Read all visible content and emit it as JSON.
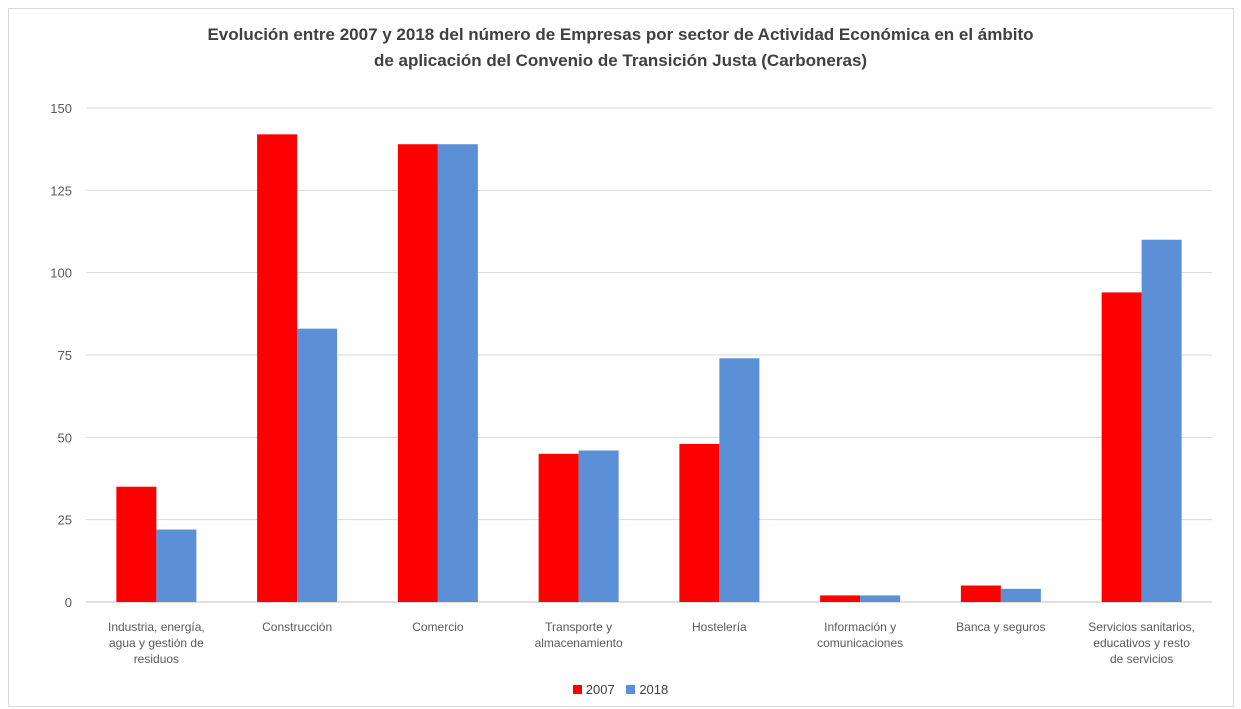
{
  "chart_data": {
    "type": "bar",
    "title_line1": "Evolución entre 2007 y 2018 del número de Empresas por sector de Actividad Económica en el ámbito",
    "title_line2": "de aplicación del Convenio de Transición Justa (Carboneras)",
    "categories": [
      [
        "Industria, energía,",
        "agua y gestión de",
        "residuos"
      ],
      [
        "Construcción"
      ],
      [
        "Comercio"
      ],
      [
        "Transporte y",
        "almacenamiento"
      ],
      [
        "Hostelería"
      ],
      [
        "Información y",
        "comunicaciones"
      ],
      [
        "Banca y seguros"
      ],
      [
        "Servicios sanitarios,",
        "educativos y resto",
        "de servicios"
      ]
    ],
    "series": [
      {
        "name": "2007",
        "color": "#ff0000",
        "values": [
          35,
          142,
          139,
          45,
          48,
          2,
          5,
          94
        ]
      },
      {
        "name": "2018",
        "color": "#5b8fd6",
        "values": [
          22,
          83,
          139,
          46,
          74,
          2,
          4,
          110
        ]
      }
    ],
    "yticks": [
      0,
      25,
      50,
      75,
      100,
      125,
      150
    ],
    "ylim": [
      0,
      150
    ],
    "grid": true,
    "legend_position": "bottom"
  }
}
